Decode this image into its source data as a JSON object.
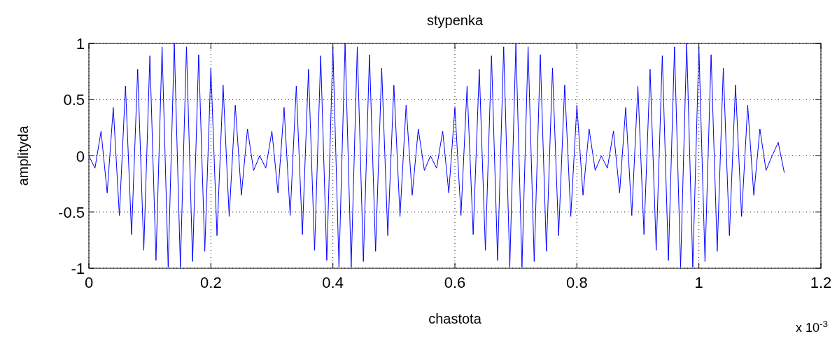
{
  "chart_data": {
    "type": "line",
    "title": "stypenka",
    "xlabel": "chastota",
    "ylabel": "amplityda",
    "annotations": [
      "x 10$^{-3}$"
    ],
    "x": [
      0,
      0.01,
      0.02,
      0.03,
      0.04,
      0.05,
      0.06,
      0.07,
      0.08,
      0.09,
      0.1,
      0.11,
      0.12,
      0.13,
      0.14,
      0.15,
      0.16,
      0.17,
      0.18,
      0.19,
      0.2,
      0.21,
      0.22,
      0.23,
      0.24,
      0.25,
      0.26,
      0.27,
      0.28,
      0.29,
      0.3,
      0.31,
      0.32,
      0.33,
      0.34,
      0.35,
      0.36,
      0.37,
      0.38,
      0.39,
      0.4,
      0.41,
      0.42,
      0.43,
      0.44,
      0.45,
      0.46,
      0.47,
      0.48,
      0.49,
      0.5,
      0.51,
      0.52,
      0.53,
      0.54,
      0.55,
      0.56,
      0.57,
      0.58,
      0.59,
      0.6,
      0.61,
      0.62,
      0.63,
      0.64,
      0.65,
      0.66,
      0.67,
      0.68,
      0.69,
      0.7,
      0.71,
      0.72,
      0.73,
      0.74,
      0.75,
      0.76,
      0.77,
      0.78,
      0.79,
      0.8,
      0.81,
      0.82,
      0.83,
      0.84,
      0.85,
      0.86,
      0.87,
      0.88,
      0.89,
      0.9,
      0.91,
      0.92,
      0.93,
      0.94,
      0.95,
      0.96,
      0.97,
      0.98,
      0.99,
      1,
      1.01,
      1.02,
      1.03,
      1.04,
      1.05,
      1.06,
      1.07,
      1.08,
      1.09,
      1.1,
      1.11,
      1.12,
      1.13,
      1.14
    ],
    "series": [
      {
        "color": "#0000ff",
        "values": [
          0,
          -0.11,
          0.22,
          -0.33,
          0.43,
          -0.53,
          0.62,
          -0.7,
          0.77,
          -0.84,
          0.89,
          -0.93,
          0.97,
          -0.99,
          1,
          -0.99,
          0.97,
          -0.94,
          0.9,
          -0.85,
          0.78,
          -0.71,
          0.63,
          -0.54,
          0.45,
          -0.35,
          0.24,
          -0.13,
          0,
          -0.11,
          0.22,
          -0.33,
          0.43,
          -0.53,
          0.62,
          -0.7,
          0.77,
          -0.84,
          0.89,
          -0.93,
          0.97,
          -0.99,
          1,
          -0.99,
          0.97,
          -0.94,
          0.9,
          -0.85,
          0.78,
          -0.71,
          0.63,
          -0.54,
          0.45,
          -0.35,
          0.24,
          -0.13,
          0,
          -0.11,
          0.22,
          -0.33,
          0.43,
          -0.53,
          0.62,
          -0.7,
          0.77,
          -0.84,
          0.89,
          -0.93,
          0.97,
          -0.99,
          1,
          -0.99,
          0.97,
          -0.94,
          0.9,
          -0.85,
          0.78,
          -0.71,
          0.63,
          -0.54,
          0.45,
          -0.35,
          0.24,
          -0.13,
          0,
          -0.11,
          0.22,
          -0.33,
          0.43,
          -0.53,
          0.62,
          -0.7,
          0.77,
          -0.84,
          0.89,
          -0.93,
          0.97,
          -0.99,
          1,
          -0.99,
          0.97,
          -0.94,
          0.9,
          -0.85,
          0.78,
          -0.71,
          0.63,
          -0.54,
          0.45,
          -0.35,
          0.24,
          -0.13,
          0,
          0.12,
          -0.15
        ]
      }
    ],
    "xlim": [
      0,
      1.2
    ],
    "xticks": [
      0,
      0.2,
      0.4,
      0.6,
      0.8,
      1,
      1.2
    ],
    "ylim": [
      -1,
      1
    ],
    "yticks": [
      -1,
      -0.5,
      0,
      0.5,
      1
    ],
    "grid": true,
    "line_style": "solid",
    "marker": "none"
  }
}
